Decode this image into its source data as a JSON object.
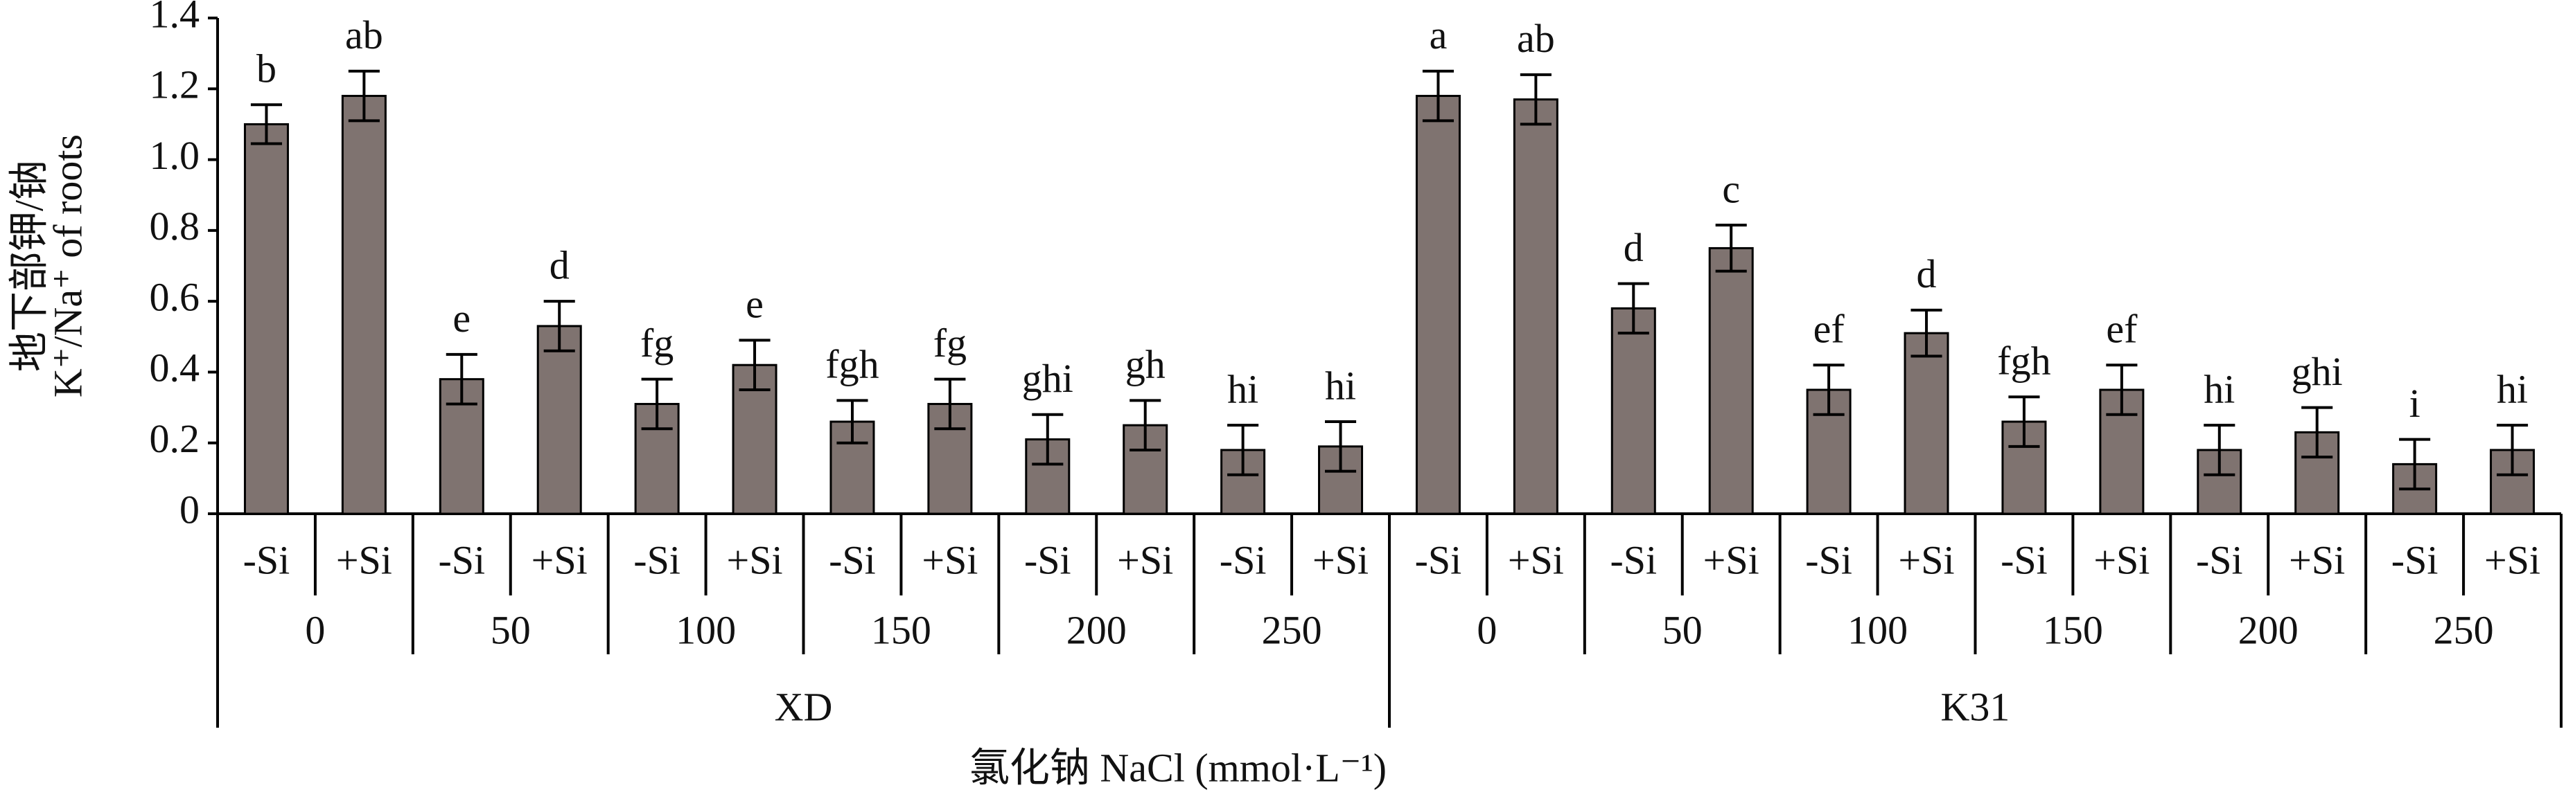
{
  "chart_data": {
    "type": "bar",
    "y_title_lines": [
      "地下部钾/钠",
      "K⁺/Na⁺ of roots"
    ],
    "x_title": "氯化钠 NaCl (mmol·L⁻¹)",
    "categories": [
      "-Si",
      "+Si",
      "-Si",
      "+Si",
      "-Si",
      "+Si",
      "-Si",
      "+Si",
      "-Si",
      "+Si",
      "-Si",
      "+Si",
      "-Si",
      "+Si",
      "-Si",
      "+Si",
      "-Si",
      "+Si",
      "-Si",
      "+Si",
      "-Si",
      "+Si",
      "-Si",
      "+Si"
    ],
    "concentrations": [
      "0",
      "50",
      "100",
      "150",
      "200",
      "250",
      "0",
      "50",
      "100",
      "150",
      "200",
      "250"
    ],
    "cultivars": [
      "XD",
      "K31"
    ],
    "series": [
      {
        "color": "#7f7370",
        "values": [
          1.1,
          1.18,
          0.38,
          0.53,
          0.31,
          0.42,
          0.26,
          0.31,
          0.21,
          0.25,
          0.18,
          0.19,
          1.18,
          1.17,
          0.58,
          0.75,
          0.35,
          0.51,
          0.26,
          0.35,
          0.18,
          0.23,
          0.14,
          0.18
        ],
        "errors": [
          0.055,
          0.07,
          0.07,
          0.07,
          0.07,
          0.07,
          0.06,
          0.07,
          0.07,
          0.07,
          0.07,
          0.07,
          0.07,
          0.07,
          0.07,
          0.065,
          0.07,
          0.065,
          0.07,
          0.07,
          0.07,
          0.07,
          0.07,
          0.07
        ],
        "letters": [
          "b",
          "ab",
          "e",
          "d",
          "fg",
          "e",
          "fgh",
          "fg",
          "ghi",
          "gh",
          "hi",
          "hi",
          "a",
          "ab",
          "d",
          "c",
          "ef",
          "d",
          "fgh",
          "ef",
          "hi",
          "ghi",
          "i",
          "hi"
        ]
      }
    ],
    "ylim": [
      0,
      1.4
    ],
    "yticks": [
      0,
      0.2,
      0.4,
      0.6,
      0.8,
      {
        "value": 1,
        "label": "1.0"
      },
      1.2,
      1.4
    ]
  }
}
